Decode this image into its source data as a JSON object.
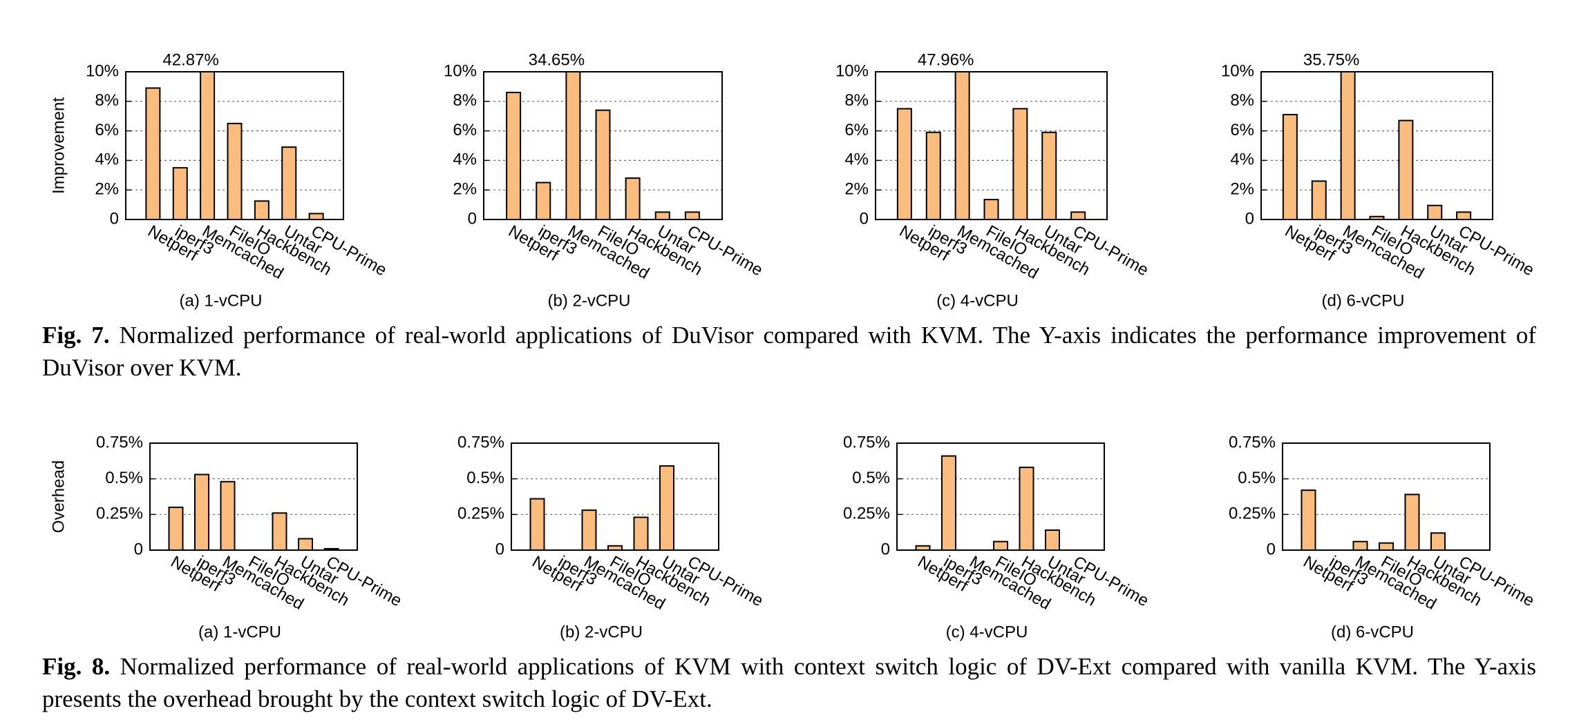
{
  "chart_data": [
    {
      "type": "bar",
      "subtitle": "(a) 1-vCPU",
      "ylabel": "Improvement",
      "categories": [
        "Netperf",
        "iperf3",
        "Memcached",
        "FileIO",
        "Hackbench",
        "Untar",
        "CPU-Prime"
      ],
      "values": [
        8.9,
        3.5,
        42.87,
        6.5,
        1.25,
        4.9,
        0.4
      ],
      "value_labels": [
        null,
        null,
        "42.87%",
        null,
        null,
        null,
        null
      ],
      "color": "#fbbd7e",
      "ylim": [
        0,
        10
      ],
      "yticks": [
        0,
        {
          "value": 2,
          "label": "2%"
        },
        {
          "value": 4,
          "label": "4%"
        },
        {
          "value": 6,
          "label": "6%"
        },
        {
          "value": 8,
          "label": "8%"
        },
        {
          "value": 10,
          "label": "10%"
        }
      ],
      "grid": true
    },
    {
      "type": "bar",
      "subtitle": "(b) 2-vCPU",
      "categories": [
        "Netperf",
        "iperf3",
        "Memcached",
        "FileIO",
        "Hackbench",
        "Untar",
        "CPU-Prime"
      ],
      "values": [
        8.6,
        2.5,
        34.65,
        7.4,
        2.8,
        0.5,
        0.5
      ],
      "value_labels": [
        null,
        null,
        "34.65%",
        null,
        null,
        null,
        null
      ],
      "color": "#fbbd7e",
      "ylim": [
        0,
        10
      ],
      "yticks": [
        0,
        {
          "value": 2,
          "label": "2%"
        },
        {
          "value": 4,
          "label": "4%"
        },
        {
          "value": 6,
          "label": "6%"
        },
        {
          "value": 8,
          "label": "8%"
        },
        {
          "value": 10,
          "label": "10%"
        }
      ],
      "grid": true
    },
    {
      "type": "bar",
      "subtitle": "(c) 4-vCPU",
      "categories": [
        "Netperf",
        "iperf3",
        "Memcached",
        "FileIO",
        "Hackbench",
        "Untar",
        "CPU-Prime"
      ],
      "values": [
        7.5,
        5.9,
        47.96,
        1.35,
        7.5,
        5.9,
        0.5
      ],
      "value_labels": [
        null,
        null,
        "47.96%",
        null,
        null,
        null,
        null
      ],
      "color": "#fbbd7e",
      "ylim": [
        0,
        10
      ],
      "yticks": [
        0,
        {
          "value": 2,
          "label": "2%"
        },
        {
          "value": 4,
          "label": "4%"
        },
        {
          "value": 6,
          "label": "6%"
        },
        {
          "value": 8,
          "label": "8%"
        },
        {
          "value": 10,
          "label": "10%"
        }
      ],
      "grid": true
    },
    {
      "type": "bar",
      "subtitle": "(d) 6-vCPU",
      "categories": [
        "Netperf",
        "iperf3",
        "Memcached",
        "FileIO",
        "Hackbench",
        "Untar",
        "CPU-Prime"
      ],
      "values": [
        7.1,
        2.6,
        35.75,
        0.2,
        6.7,
        0.95,
        0.5
      ],
      "value_labels": [
        null,
        null,
        "35.75%",
        null,
        null,
        null,
        null
      ],
      "color": "#fbbd7e",
      "ylim": [
        0,
        10
      ],
      "yticks": [
        0,
        {
          "value": 2,
          "label": "2%"
        },
        {
          "value": 4,
          "label": "4%"
        },
        {
          "value": 6,
          "label": "6%"
        },
        {
          "value": 8,
          "label": "8%"
        },
        {
          "value": 10,
          "label": "10%"
        }
      ],
      "grid": true
    },
    {
      "type": "bar",
      "subtitle": "(a) 1-vCPU",
      "ylabel": "Overhead",
      "categories": [
        "Netperf",
        "iperf3",
        "Memcached",
        "FileIO",
        "Hackbench",
        "Untar",
        "CPU-Prime"
      ],
      "values": [
        0.3,
        0.53,
        0.48,
        0,
        0.26,
        0.08,
        0.01
      ],
      "color": "#fbbd7e",
      "ylim": [
        0,
        0.75
      ],
      "yticks": [
        0,
        {
          "value": 0.25,
          "label": "0.25%"
        },
        {
          "value": 0.5,
          "label": "0.5%"
        },
        {
          "value": 0.75,
          "label": "0.75%"
        }
      ],
      "grid": true
    },
    {
      "type": "bar",
      "subtitle": "(b) 2-vCPU",
      "categories": [
        "Netperf",
        "iperf3",
        "Memcached",
        "FileIO",
        "Hackbench",
        "Untar",
        "CPU-Prime"
      ],
      "values": [
        0.36,
        0,
        0.28,
        0.03,
        0.23,
        0.59,
        0
      ],
      "color": "#fbbd7e",
      "ylim": [
        0,
        0.75
      ],
      "yticks": [
        0,
        {
          "value": 0.25,
          "label": "0.25%"
        },
        {
          "value": 0.5,
          "label": "0.5%"
        },
        {
          "value": 0.75,
          "label": "0.75%"
        }
      ],
      "grid": true
    },
    {
      "type": "bar",
      "subtitle": "(c) 4-vCPU",
      "categories": [
        "Netperf",
        "iperf3",
        "Memcached",
        "FileIO",
        "Hackbench",
        "Untar",
        "CPU-Prime"
      ],
      "values": [
        0.03,
        0.66,
        0,
        0.06,
        0.58,
        0.14,
        0
      ],
      "color": "#fbbd7e",
      "ylim": [
        0,
        0.75
      ],
      "yticks": [
        0,
        {
          "value": 0.25,
          "label": "0.25%"
        },
        {
          "value": 0.5,
          "label": "0.5%"
        },
        {
          "value": 0.75,
          "label": "0.75%"
        }
      ],
      "grid": true
    },
    {
      "type": "bar",
      "subtitle": "(d) 6-vCPU",
      "categories": [
        "Netperf",
        "iperf3",
        "Memcached",
        "FileIO",
        "Hackbench",
        "Untar",
        "CPU-Prime"
      ],
      "values": [
        0.42,
        0,
        0.06,
        0.05,
        0.39,
        0.12,
        0
      ],
      "color": "#fbbd7e",
      "ylim": [
        0,
        0.75
      ],
      "yticks": [
        0,
        {
          "value": 0.25,
          "label": "0.25%"
        },
        {
          "value": 0.5,
          "label": "0.5%"
        },
        {
          "value": 0.75,
          "label": "0.75%"
        }
      ],
      "grid": true
    }
  ],
  "figures": [
    {
      "label": "Fig. 7.",
      "text": "Normalized performance of real-world applications of DuVisor compared with KVM. The Y-axis indicates the performance improvement of DuVisor over KVM."
    },
    {
      "label": "Fig. 8.",
      "text": "Normalized performance of real-world applications of KVM with context switch logic of DV-Ext compared with vanilla KVM. The Y-axis presents the overhead brought by the context switch logic of DV-Ext."
    }
  ]
}
